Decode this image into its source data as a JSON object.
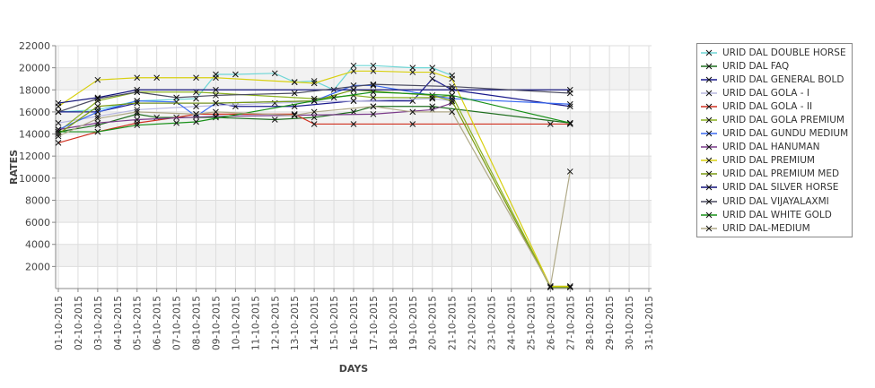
{
  "chart_data": {
    "type": "line",
    "xlabel": "DAYS",
    "ylabel": "RATES",
    "ylim": [
      0,
      22000
    ],
    "yticks": [
      2000,
      4000,
      6000,
      8000,
      10000,
      12000,
      14000,
      16000,
      18000,
      20000,
      22000
    ],
    "categories": [
      "01-10-2015",
      "02-10-2015",
      "03-10-2015",
      "04-10-2015",
      "05-10-2015",
      "06-10-2015",
      "07-10-2015",
      "08-10-2015",
      "09-10-2015",
      "10-10-2015",
      "11-10-2015",
      "12-10-2015",
      "13-10-2015",
      "14-10-2015",
      "15-10-2015",
      "16-10-2015",
      "17-10-2015",
      "18-10-2015",
      "19-10-2015",
      "20-10-2015",
      "21-10-2015",
      "22-10-2015",
      "23-10-2015",
      "24-10-2015",
      "25-10-2015",
      "26-10-2015",
      "27-10-2015",
      "28-10-2015",
      "29-10-2015",
      "30-10-2015",
      "31-10-2015"
    ],
    "legend_position": "right",
    "series": [
      {
        "name": "URID DAL DOUBLE HORSE",
        "color": "#6fd6d6",
        "points": [
          [
            1,
            16000
          ],
          [
            3,
            16200
          ],
          [
            5,
            17000
          ],
          [
            8,
            17200
          ],
          [
            9,
            19400
          ],
          [
            10,
            19400
          ],
          [
            12,
            19500
          ],
          [
            13,
            18700
          ],
          [
            14,
            18800
          ],
          [
            15,
            18000
          ],
          [
            16,
            20200
          ],
          [
            17,
            20200
          ],
          [
            19,
            20000
          ],
          [
            20,
            20000
          ],
          [
            21,
            19300
          ]
        ]
      },
      {
        "name": "URID DAL FAQ",
        "color": "#1e6e1e",
        "points": [
          [
            1,
            14200
          ],
          [
            3,
            14800
          ],
          [
            5,
            15800
          ],
          [
            6,
            15500
          ],
          [
            9,
            15500
          ],
          [
            12,
            15300
          ],
          [
            14,
            15500
          ],
          [
            16,
            16000
          ],
          [
            17,
            16500
          ],
          [
            20,
            16500
          ],
          [
            27,
            15000
          ]
        ]
      },
      {
        "name": "URID DAL GENERAL BOLD",
        "color": "#1a1a8c",
        "points": [
          [
            1,
            16000
          ],
          [
            3,
            16000
          ],
          [
            5,
            16800
          ],
          [
            9,
            16800
          ],
          [
            10,
            16500
          ],
          [
            13,
            16500
          ],
          [
            16,
            17000
          ],
          [
            19,
            17000
          ],
          [
            20,
            19000
          ],
          [
            21,
            18000
          ],
          [
            27,
            16500
          ]
        ]
      },
      {
        "name": "URID DAL GOLA - I",
        "color": "#b8b8e0",
        "points": [
          [
            1,
            15000
          ],
          [
            3,
            15600
          ],
          [
            5,
            16200
          ],
          [
            8,
            16500
          ],
          [
            12,
            16800
          ],
          [
            16,
            17000
          ],
          [
            20,
            17200
          ],
          [
            21,
            17000
          ]
        ]
      },
      {
        "name": "URID DAL GOLA - II",
        "color": "#d03020",
        "points": [
          [
            1,
            13200
          ],
          [
            3,
            14200
          ],
          [
            5,
            15000
          ],
          [
            7,
            15500
          ],
          [
            8,
            15800
          ],
          [
            13,
            15800
          ],
          [
            14,
            14900
          ],
          [
            16,
            14900
          ],
          [
            19,
            14900
          ],
          [
            26,
            14900
          ],
          [
            27,
            14900
          ]
        ]
      },
      {
        "name": "URID DAL GOLA PREMIUM",
        "color": "#8ab020",
        "points": [
          [
            1,
            14200
          ],
          [
            3,
            17000
          ],
          [
            5,
            17800
          ],
          [
            8,
            17800
          ],
          [
            14,
            17200
          ],
          [
            16,
            17500
          ],
          [
            17,
            17300
          ],
          [
            20,
            17300
          ],
          [
            21,
            17500
          ],
          [
            26,
            200
          ],
          [
            27,
            200
          ]
        ]
      },
      {
        "name": "URID DAL GUNDU MEDIUM",
        "color": "#3a6af0",
        "points": [
          [
            1,
            14400
          ],
          [
            3,
            16000
          ],
          [
            5,
            17000
          ],
          [
            7,
            16900
          ],
          [
            8,
            15600
          ],
          [
            9,
            16800
          ],
          [
            14,
            17000
          ],
          [
            16,
            18400
          ],
          [
            17,
            18400
          ],
          [
            21,
            17200
          ],
          [
            27,
            16700
          ]
        ]
      },
      {
        "name": "URID DAL HANUMAN",
        "color": "#7a3a8a",
        "points": [
          [
            1,
            14400
          ],
          [
            3,
            15000
          ],
          [
            5,
            15300
          ],
          [
            9,
            15600
          ],
          [
            13,
            15700
          ],
          [
            17,
            15800
          ],
          [
            20,
            16200
          ],
          [
            21,
            16800
          ]
        ]
      },
      {
        "name": "URID DAL PREMIUM",
        "color": "#d8d010",
        "points": [
          [
            1,
            16500
          ],
          [
            3,
            18900
          ],
          [
            5,
            19100
          ],
          [
            6,
            19100
          ],
          [
            8,
            19100
          ],
          [
            9,
            19100
          ],
          [
            13,
            18700
          ],
          [
            14,
            18600
          ],
          [
            16,
            19700
          ],
          [
            17,
            19700
          ],
          [
            19,
            19600
          ],
          [
            20,
            19600
          ],
          [
            21,
            19000
          ],
          [
            26,
            200
          ],
          [
            27,
            200
          ]
        ]
      },
      {
        "name": "URID DAL PREMIUM MED",
        "color": "#7a9a10",
        "points": [
          [
            1,
            14000
          ],
          [
            3,
            16500
          ],
          [
            5,
            16800
          ],
          [
            9,
            16800
          ],
          [
            14,
            17000
          ],
          [
            16,
            18000
          ],
          [
            20,
            17500
          ],
          [
            21,
            17000
          ],
          [
            26,
            100
          ],
          [
            27,
            100
          ]
        ]
      },
      {
        "name": "URID DAL SILVER HORSE",
        "color": "#12127a",
        "points": [
          [
            1,
            16800
          ],
          [
            3,
            17300
          ],
          [
            5,
            18000
          ],
          [
            9,
            18000
          ],
          [
            16,
            18000
          ],
          [
            21,
            18000
          ],
          [
            27,
            18000
          ]
        ]
      },
      {
        "name": "URID DAL VIJAYALAXMI",
        "color": "#4a4a60",
        "points": [
          [
            1,
            16000
          ],
          [
            3,
            17200
          ],
          [
            5,
            17800
          ],
          [
            7,
            17300
          ],
          [
            9,
            17500
          ],
          [
            13,
            17700
          ],
          [
            17,
            18500
          ],
          [
            21,
            18300
          ],
          [
            27,
            17700
          ]
        ]
      },
      {
        "name": "URID DAL WHITE GOLD",
        "color": "#189018",
        "points": [
          [
            1,
            14200
          ],
          [
            3,
            14200
          ],
          [
            5,
            14800
          ],
          [
            7,
            15000
          ],
          [
            8,
            15100
          ],
          [
            14,
            17000
          ],
          [
            15,
            17300
          ],
          [
            17,
            17800
          ],
          [
            21,
            17500
          ],
          [
            27,
            15000
          ]
        ]
      },
      {
        "name": "URID DAL-MEDIUM",
        "color": "#b0aa88",
        "points": [
          [
            1,
            13800
          ],
          [
            3,
            15400
          ],
          [
            5,
            16000
          ],
          [
            8,
            15800
          ],
          [
            9,
            16000
          ],
          [
            13,
            15700
          ],
          [
            14,
            16000
          ],
          [
            17,
            16500
          ],
          [
            19,
            16000
          ],
          [
            21,
            16000
          ],
          [
            26,
            200
          ],
          [
            27,
            10600
          ]
        ]
      }
    ]
  }
}
